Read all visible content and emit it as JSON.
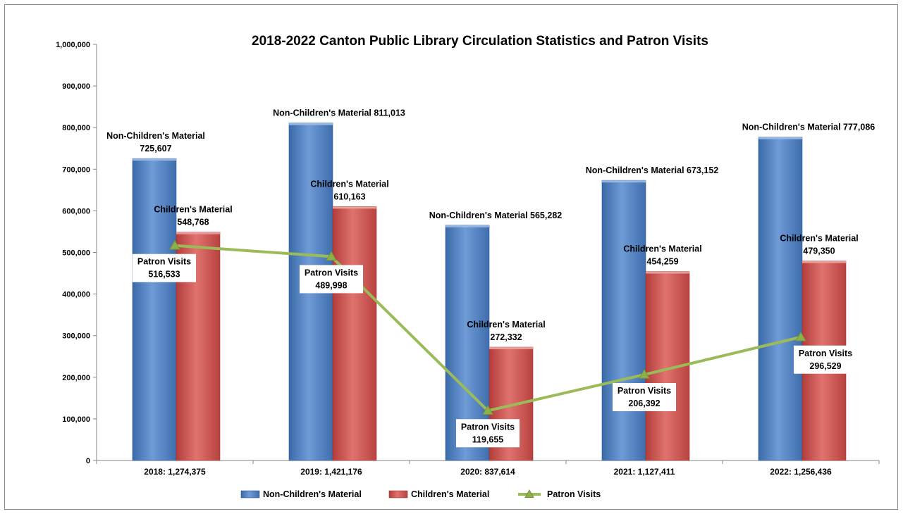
{
  "chart_data": {
    "type": "bar",
    "title": "2018-2022 Canton Public Library Circulation Statistics and Patron Visits",
    "xlabel": "",
    "ylabel": "",
    "ylim": [
      0,
      1000000
    ],
    "yticks": [
      "0",
      "100,000",
      "200,000",
      "300,000",
      "400,000",
      "500,000",
      "600,000",
      "700,000",
      "800,000",
      "900,000",
      "1,000,000"
    ],
    "categories": [
      "2018: 1,274,375",
      "2019: 1,421,176",
      "2020: 837,614",
      "2021: 1,127,411",
      "2022: 1,256,436"
    ],
    "series": [
      {
        "name": "Non-Children's Material",
        "kind": "bar",
        "color": "#4f81bd",
        "values": [
          725607,
          811013,
          565282,
          673152,
          777086
        ],
        "labels": [
          [
            "Non-Children's Material",
            "725,607"
          ],
          [
            "Non-Children's Material 811,013"
          ],
          [
            "Non-Children's Material 565,282"
          ],
          [
            "Non-Children's Material 673,152"
          ],
          [
            "Non-Children's Material 777,086"
          ]
        ]
      },
      {
        "name": "Children's Material",
        "kind": "bar",
        "color": "#c0504d",
        "values": [
          548768,
          610163,
          272332,
          454259,
          479350
        ],
        "labels": [
          [
            "Children's Material",
            "548,768"
          ],
          [
            "Children's Material",
            "610,163"
          ],
          [
            "Children's Material",
            "272,332"
          ],
          [
            "Children's Material",
            "454,259"
          ],
          [
            "Children's Material",
            "479,350"
          ]
        ]
      },
      {
        "name": "Patron Visits",
        "kind": "line",
        "color": "#9bbb59",
        "values": [
          516533,
          489998,
          119655,
          206392,
          296529
        ],
        "labels": [
          [
            "Patron Visits",
            "516,533"
          ],
          [
            "Patron Visits",
            "489,998"
          ],
          [
            "Patron Visits",
            "119,655"
          ],
          [
            "Patron Visits",
            "206,392"
          ],
          [
            "Patron Visits",
            "296,529"
          ]
        ]
      }
    ],
    "legend": {
      "position": "bottom"
    },
    "grid": false
  }
}
